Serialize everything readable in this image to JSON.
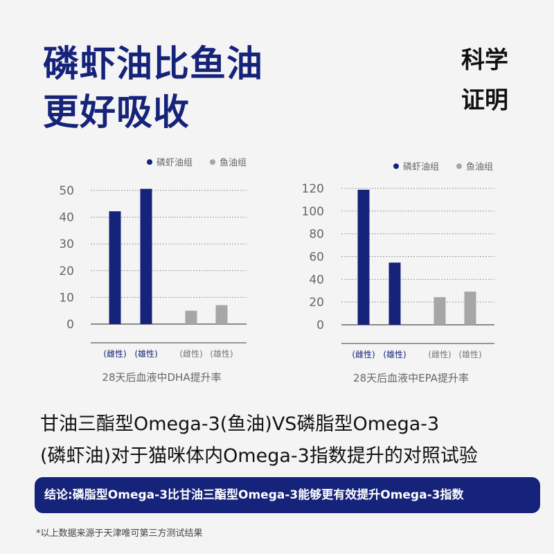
{
  "header": {
    "title_line1": "磷虾油比鱼油",
    "title_line2": "更好吸收",
    "badge_line1": "科学",
    "badge_line2": "证明"
  },
  "colors": {
    "krill": "#16237a",
    "fish": "#a6a6a6",
    "background": "#f4f4f4"
  },
  "chart_data": [
    {
      "type": "bar",
      "title": "28天后血液中DHA提升率",
      "categories": [
        "(雌性)",
        "(雄性)",
        "(雌性)",
        "(雄性)"
      ],
      "series": [
        {
          "name": "磷虾油组",
          "values": [
            42.2,
            50.6,
            null,
            null
          ]
        },
        {
          "name": "鱼油组",
          "values": [
            null,
            null,
            5.0,
            7.1
          ]
        }
      ],
      "ylim": [
        0,
        50
      ],
      "yticks": [
        "0",
        "10",
        "20",
        "30",
        "40",
        "50"
      ],
      "grid": true,
      "legend": "top-right"
    },
    {
      "type": "bar",
      "title": "28天后血液中EPA提升率",
      "categories": [
        "(雌性)",
        "(雄性)",
        "(雌性)",
        "(雄性)"
      ],
      "series": [
        {
          "name": "磷虾油组",
          "values": [
            118.8,
            54.7,
            null,
            null
          ]
        },
        {
          "name": "鱼油组",
          "values": [
            null,
            null,
            24.3,
            29.2
          ]
        }
      ],
      "ylim": [
        0,
        120
      ],
      "yticks": [
        "0",
        "20",
        "40",
        "60",
        "80",
        "100",
        "120"
      ],
      "grid": true,
      "legend": "top-right"
    }
  ],
  "description": {
    "line1": "甘油三酯型Omega-3(鱼油)VS磷脂型Omega-3",
    "line2": "(磷虾油)对于猫咪体内Omega-3指数提升的对照试验"
  },
  "conclusion": "结论:磷脂型Omega-3比甘油三酯型Omega-3能够更有效提升Omega-3指数",
  "footnote": "*以上数据来源于天津唯可第三方测试结果"
}
